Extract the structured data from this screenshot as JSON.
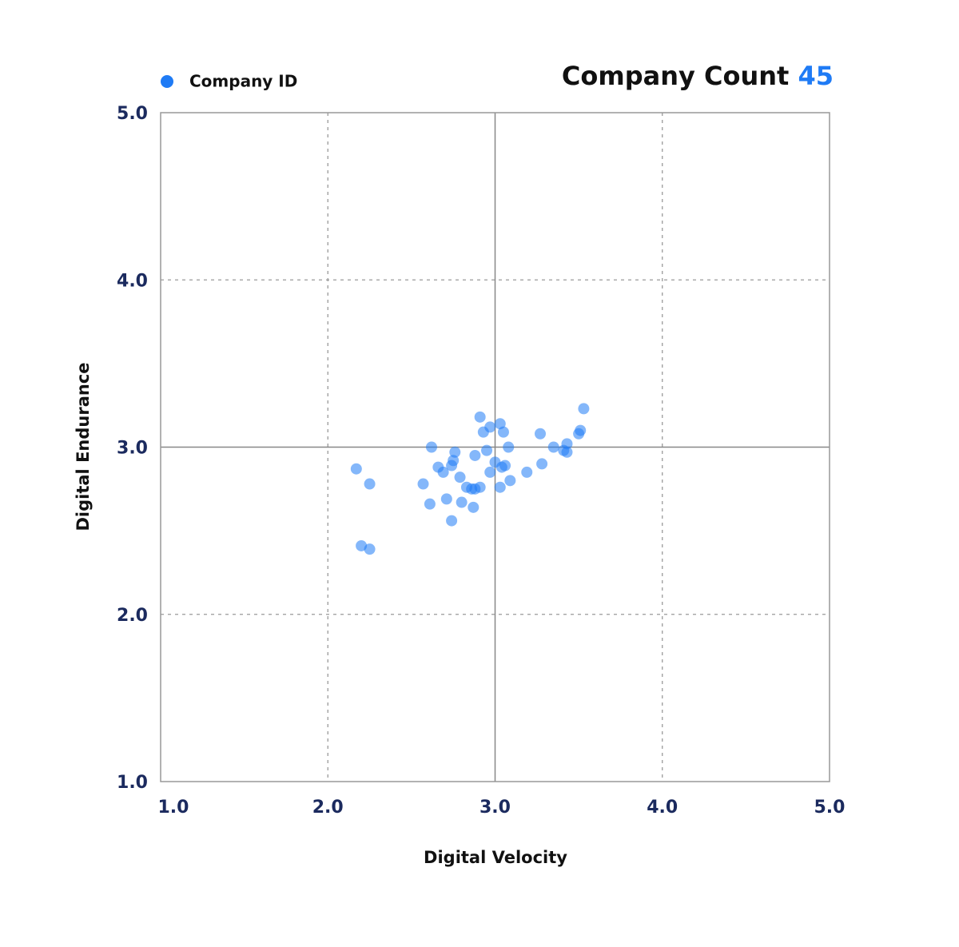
{
  "chart_data": {
    "type": "scatter",
    "title": "Company Count",
    "count": 45,
    "x_label": "Digital Velocity",
    "y_label": "Digital Endurance",
    "xlim": [
      1,
      5
    ],
    "ylim": [
      1,
      5
    ],
    "xticks": [
      {
        "value": 1,
        "label": "1.0"
      },
      {
        "value": 2,
        "label": "2.0"
      },
      {
        "value": 3,
        "label": "3.0"
      },
      {
        "value": 4,
        "label": "4.0"
      },
      {
        "value": 5,
        "label": "5.0"
      }
    ],
    "yticks": [
      {
        "value": 1,
        "label": "1.0"
      },
      {
        "value": 2,
        "label": "2.0"
      },
      {
        "value": 3,
        "label": "3.0"
      },
      {
        "value": 4,
        "label": "4.0"
      },
      {
        "value": 5,
        "label": "5.0"
      }
    ],
    "grid": true,
    "series": [
      {
        "name": "Company ID",
        "color": "#1f7bf5",
        "x": [
          2.17,
          2.25,
          2.2,
          2.25,
          2.57,
          2.61,
          2.62,
          2.66,
          2.69,
          2.71,
          2.74,
          2.74,
          2.75,
          2.76,
          2.79,
          2.8,
          2.83,
          2.86,
          2.88,
          2.87,
          2.88,
          2.91,
          2.91,
          2.93,
          2.95,
          2.97,
          2.97,
          3.0,
          3.03,
          3.05,
          3.04,
          3.03,
          3.06,
          3.08,
          3.09,
          3.19,
          3.27,
          3.28,
          3.35,
          3.41,
          3.43,
          3.43,
          3.5,
          3.51,
          3.53
        ],
        "values": [
          2.87,
          2.78,
          2.41,
          2.39,
          2.78,
          2.66,
          3.0,
          2.88,
          2.85,
          2.69,
          2.56,
          2.89,
          2.92,
          2.97,
          2.82,
          2.67,
          2.76,
          2.75,
          2.75,
          2.64,
          2.95,
          2.76,
          3.18,
          3.09,
          2.98,
          3.12,
          2.85,
          2.91,
          3.14,
          3.09,
          2.88,
          2.76,
          2.89,
          3.0,
          2.8,
          2.85,
          3.08,
          2.9,
          3.0,
          2.98,
          2.97,
          3.02,
          3.08,
          3.1,
          3.23
        ]
      }
    ]
  }
}
